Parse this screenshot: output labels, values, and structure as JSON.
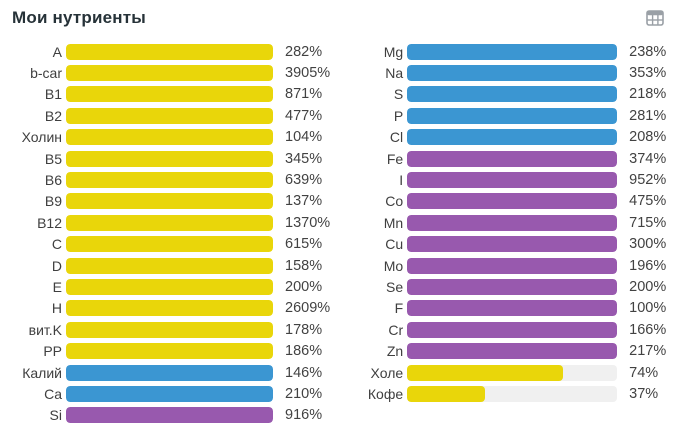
{
  "header": {
    "title": "Мои нутриенты",
    "table_view_icon": "table-grid-icon"
  },
  "colors": {
    "yellow": "#e9d60a",
    "blue": "#3b96d2",
    "purple": "#9859ae",
    "track": "#f0f0f0",
    "label_text": "#3f3f3f",
    "value_text": "#424242",
    "title_text": "#263238",
    "icon_gray": "#9aa0a6"
  },
  "chart_data": {
    "type": "bar",
    "orientation": "horizontal",
    "unit": "%",
    "title": "Мои нутриенты",
    "note": "Bar fill is capped at 100% of track width; displayed values may exceed 100%",
    "legend": null,
    "grid": false,
    "columns": [
      {
        "name": "left",
        "rows": [
          {
            "label": "A",
            "value": 282,
            "display": "282%",
            "color": "yellow"
          },
          {
            "label": "b-car",
            "value": 3905,
            "display": "3905%",
            "color": "yellow"
          },
          {
            "label": "B1",
            "value": 871,
            "display": "871%",
            "color": "yellow"
          },
          {
            "label": "B2",
            "value": 477,
            "display": "477%",
            "color": "yellow"
          },
          {
            "label": "Холин",
            "value": 104,
            "display": "104%",
            "color": "yellow"
          },
          {
            "label": "B5",
            "value": 345,
            "display": "345%",
            "color": "yellow"
          },
          {
            "label": "B6",
            "value": 639,
            "display": "639%",
            "color": "yellow"
          },
          {
            "label": "B9",
            "value": 137,
            "display": "137%",
            "color": "yellow"
          },
          {
            "label": "B12",
            "value": 1370,
            "display": "1370%",
            "color": "yellow"
          },
          {
            "label": "C",
            "value": 615,
            "display": "615%",
            "color": "yellow"
          },
          {
            "label": "D",
            "value": 158,
            "display": "158%",
            "color": "yellow"
          },
          {
            "label": "E",
            "value": 200,
            "display": "200%",
            "color": "yellow"
          },
          {
            "label": "H",
            "value": 2609,
            "display": "2609%",
            "color": "yellow"
          },
          {
            "label": "вит.K",
            "value": 178,
            "display": "178%",
            "color": "yellow"
          },
          {
            "label": "PP",
            "value": 186,
            "display": "186%",
            "color": "yellow"
          },
          {
            "label": "Калий",
            "value": 146,
            "display": "146%",
            "color": "blue"
          },
          {
            "label": "Ca",
            "value": 210,
            "display": "210%",
            "color": "blue"
          },
          {
            "label": "Si",
            "value": 916,
            "display": "916%",
            "color": "purple"
          }
        ]
      },
      {
        "name": "right",
        "rows": [
          {
            "label": "Mg",
            "value": 238,
            "display": "238%",
            "color": "blue"
          },
          {
            "label": "Na",
            "value": 353,
            "display": "353%",
            "color": "blue"
          },
          {
            "label": "S",
            "value": 218,
            "display": "218%",
            "color": "blue"
          },
          {
            "label": "P",
            "value": 281,
            "display": "281%",
            "color": "blue"
          },
          {
            "label": "Cl",
            "value": 208,
            "display": "208%",
            "color": "blue"
          },
          {
            "label": "Fe",
            "value": 374,
            "display": "374%",
            "color": "purple"
          },
          {
            "label": "I",
            "value": 952,
            "display": "952%",
            "color": "purple"
          },
          {
            "label": "Co",
            "value": 475,
            "display": "475%",
            "color": "purple"
          },
          {
            "label": "Mn",
            "value": 715,
            "display": "715%",
            "color": "purple"
          },
          {
            "label": "Cu",
            "value": 300,
            "display": "300%",
            "color": "purple"
          },
          {
            "label": "Mo",
            "value": 196,
            "display": "196%",
            "color": "purple"
          },
          {
            "label": "Se",
            "value": 200,
            "display": "200%",
            "color": "purple"
          },
          {
            "label": "F",
            "value": 100,
            "display": "100%",
            "color": "purple"
          },
          {
            "label": "Cr",
            "value": 166,
            "display": "166%",
            "color": "purple"
          },
          {
            "label": "Zn",
            "value": 217,
            "display": "217%",
            "color": "purple"
          },
          {
            "label": "Холе",
            "value": 74,
            "display": "74%",
            "color": "yellow"
          },
          {
            "label": "Кофе",
            "value": 37,
            "display": "37%",
            "color": "yellow"
          }
        ]
      }
    ]
  }
}
